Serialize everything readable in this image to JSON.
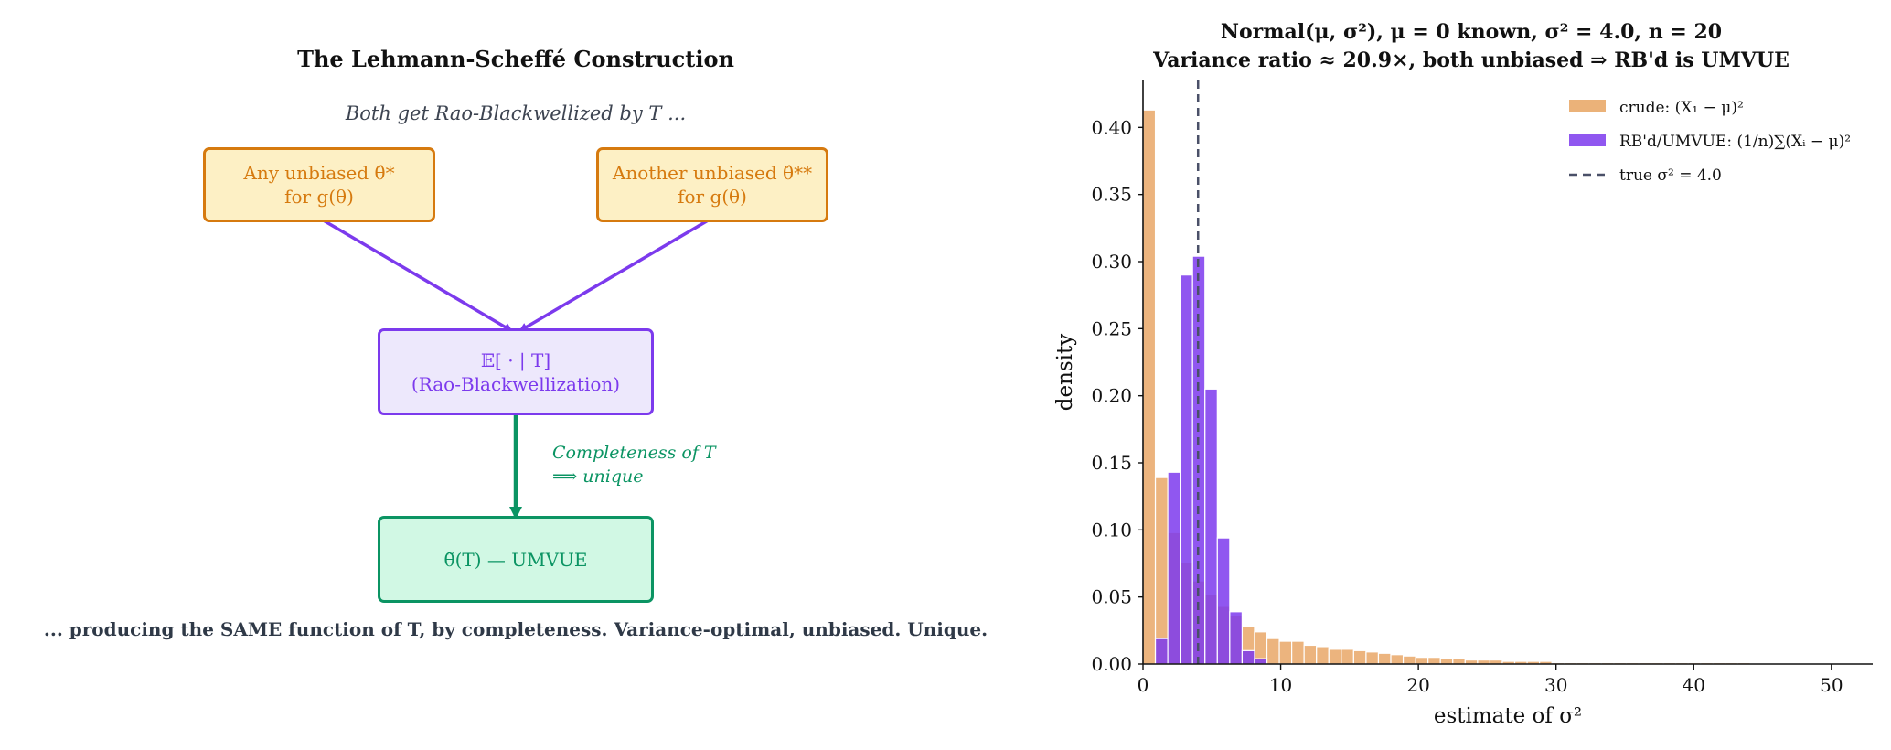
{
  "diagram": {
    "title": "The Lehmann-Scheffé Construction",
    "subtitle": "Both get Rao-Blackwellized by T ...",
    "box_left": {
      "line1": "Any unbiased θ̂*",
      "line2": "for g(θ)"
    },
    "box_right": {
      "line1": "Another unbiased θ̂**",
      "line2": "for g(θ)"
    },
    "box_middle": {
      "line1": "𝔼[ · | T]",
      "line2": "(Rao-Blackwellization)"
    },
    "note": {
      "line1": "Completeness of T",
      "line2": "⟹ unique"
    },
    "box_bottom": {
      "line1": "θ̃(T) — UMVUE"
    },
    "footer": "... producing the SAME function of T, by completeness. Variance-optimal, unbiased. Unique.",
    "colors": {
      "orange": "#d67a0f",
      "purple": "#7c3aed",
      "green": "#0b9463"
    }
  },
  "chart_data": {
    "type": "bar",
    "title_line1": "Normal(μ, σ²), μ = 0 known,  σ² = 4.0, n = 20",
    "title_line2": "Variance ratio ≈ 20.9×,  both unbiased  ⇒  RB'd is UMVUE",
    "xlabel": "estimate of σ²",
    "ylabel": "density",
    "xlim": [
      0,
      53
    ],
    "ylim": [
      0,
      0.435
    ],
    "xticks": [
      "0",
      "10",
      "20",
      "30",
      "40",
      "50"
    ],
    "yticks": [
      "0.00",
      "0.05",
      "0.10",
      "0.15",
      "0.20",
      "0.25",
      "0.30",
      "0.35",
      "0.40"
    ],
    "bin_width": 0.9,
    "grid": false,
    "legend_placement": "top-right",
    "true_value_line": {
      "x": 4.0,
      "label": "true σ² = 4.0",
      "color": "#4a5068"
    },
    "series": [
      {
        "name": "crude: (X₁ − μ)²",
        "color": "#e8a462",
        "bin_start": 0,
        "values": [
          0.413,
          0.139,
          0.098,
          0.076,
          0.062,
          0.052,
          0.043,
          0.036,
          0.028,
          0.024,
          0.019,
          0.017,
          0.017,
          0.014,
          0.013,
          0.011,
          0.011,
          0.01,
          0.009,
          0.008,
          0.007,
          0.006,
          0.005,
          0.005,
          0.004,
          0.004,
          0.003,
          0.003,
          0.003,
          0.002,
          0.002,
          0.002,
          0.002,
          0.001,
          0.001,
          0.001,
          0.001,
          0.001,
          0.001,
          0.001,
          0.001,
          0.001,
          0.001,
          0.001,
          0.001,
          0.001,
          0.001,
          0.001,
          0.001
        ]
      },
      {
        "name": "RB'd/UMVUE: (1/n)∑(Xᵢ − μ)²",
        "color": "#7c3aed",
        "bin_start": 0.9,
        "values": [
          0.019,
          0.143,
          0.29,
          0.304,
          0.205,
          0.094,
          0.039,
          0.01,
          0.004
        ]
      }
    ]
  }
}
